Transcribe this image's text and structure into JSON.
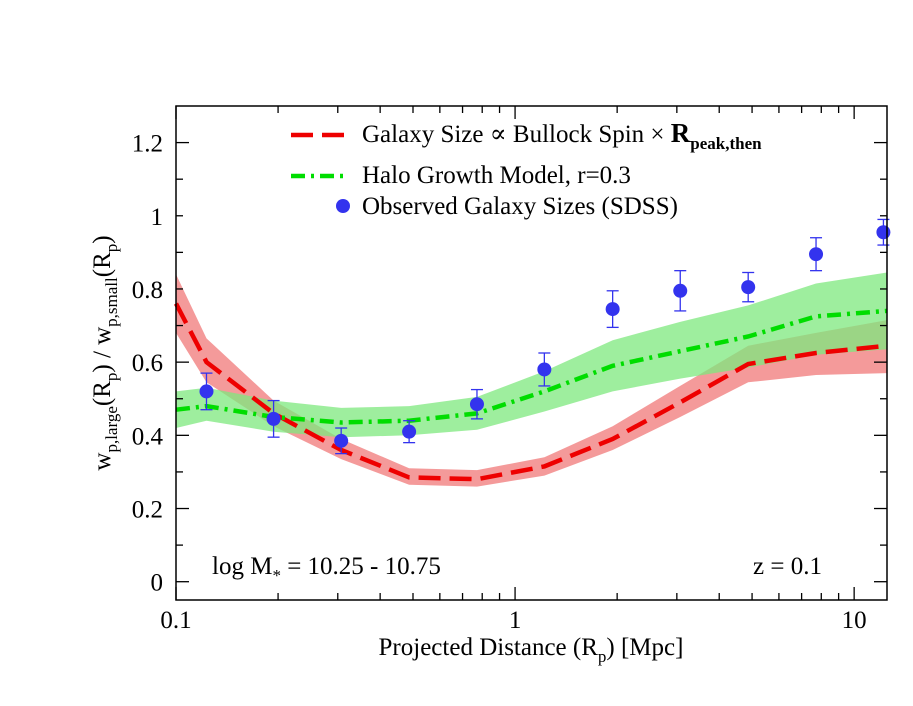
{
  "chart_data": {
    "type": "line",
    "x_scale": "log",
    "xlim": [
      0.1,
      12.5
    ],
    "ylim": [
      -0.05,
      1.3
    ],
    "xticks": [
      {
        "value": 0.1,
        "label": "0.1"
      },
      {
        "value": 1,
        "label": "1"
      },
      {
        "value": 10,
        "label": "10"
      }
    ],
    "yticks": [
      {
        "value": 0,
        "label": "0"
      },
      {
        "value": 0.2,
        "label": "0.2"
      },
      {
        "value": 0.4,
        "label": "0.4"
      },
      {
        "value": 0.6,
        "label": "0.6"
      },
      {
        "value": 0.8,
        "label": "0.8"
      },
      {
        "value": 1,
        "label": "1"
      },
      {
        "value": 1.2,
        "label": "1.2"
      }
    ],
    "xlabel": {
      "main": "Projected Distance (R",
      "sub": "p",
      "tail": ") [Mpc]"
    },
    "ylabel": {
      "w1": "w",
      "sub1": "p,large",
      "mid1": "(R",
      "sub2": "p",
      "mid2": ") / w",
      "sub3": "p,small",
      "mid3": "(R",
      "sub4": "p",
      "end": ")"
    },
    "annotations": {
      "mass_prefix": "log M",
      "mass_sub": "*",
      "mass_range": " = 10.25 - 10.75",
      "redshift": "z = 0.1"
    },
    "legend": {
      "placement": "top-center",
      "entries": [
        {
          "text": "Galaxy Size ∝ Bullock Spin × ",
          "bold": "R",
          "bold_sub": "peak,then"
        },
        {
          "text": "Halo Growth Model, r=0.3"
        },
        {
          "text": "Observed Galaxy Sizes (SDSS)"
        }
      ]
    },
    "series": [
      {
        "name": "Galaxy Size ∝ Bullock Spin × R_peak,then",
        "style": "dashed",
        "color": "#ee0000",
        "band_color": "#f07878",
        "x": [
          0.1,
          0.123,
          0.194,
          0.307,
          0.487,
          0.772,
          1.22,
          1.94,
          3.07,
          4.87,
          7.72,
          12.5
        ],
        "y": [
          0.76,
          0.6,
          0.46,
          0.36,
          0.285,
          0.28,
          0.315,
          0.39,
          0.49,
          0.595,
          0.625,
          0.645
        ],
        "band_low": [
          0.68,
          0.545,
          0.425,
          0.335,
          0.265,
          0.26,
          0.29,
          0.36,
          0.45,
          0.545,
          0.565,
          0.57
        ],
        "band_high": [
          0.84,
          0.665,
          0.495,
          0.39,
          0.31,
          0.305,
          0.34,
          0.425,
          0.535,
          0.645,
          0.68,
          0.715
        ]
      },
      {
        "name": "Halo Growth Model, r=0.3",
        "style": "dash-dot",
        "color": "#00dd00",
        "band_color": "#7ee87e",
        "x": [
          0.1,
          0.123,
          0.194,
          0.307,
          0.487,
          0.772,
          1.22,
          1.94,
          3.07,
          4.87,
          7.72,
          12.5
        ],
        "y": [
          0.47,
          0.48,
          0.45,
          0.435,
          0.44,
          0.46,
          0.52,
          0.59,
          0.63,
          0.67,
          0.725,
          0.74
        ],
        "band_low": [
          0.42,
          0.44,
          0.41,
          0.395,
          0.4,
          0.415,
          0.465,
          0.52,
          0.555,
          0.585,
          0.62,
          0.635
        ],
        "band_high": [
          0.52,
          0.53,
          0.495,
          0.475,
          0.48,
          0.505,
          0.575,
          0.66,
          0.71,
          0.755,
          0.815,
          0.845
        ]
      },
      {
        "name": "Observed Galaxy Sizes (SDSS)",
        "style": "points",
        "color": "#3333ee",
        "x": [
          0.123,
          0.194,
          0.307,
          0.487,
          0.772,
          1.22,
          1.94,
          3.07,
          4.87,
          7.72,
          12.2
        ],
        "y": [
          0.52,
          0.445,
          0.385,
          0.41,
          0.485,
          0.58,
          0.745,
          0.795,
          0.805,
          0.895,
          0.955
        ],
        "err": [
          0.05,
          0.05,
          0.035,
          0.03,
          0.04,
          0.045,
          0.05,
          0.055,
          0.04,
          0.045,
          0.035
        ]
      }
    ]
  }
}
